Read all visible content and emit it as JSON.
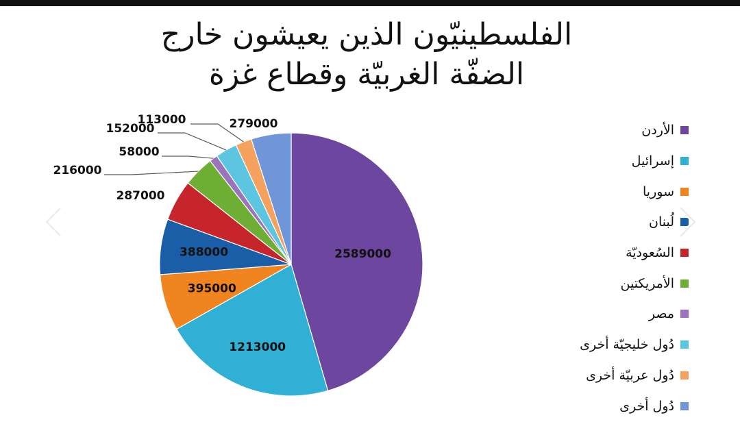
{
  "colors": {
    "background": "#ffffff",
    "title": "#111111",
    "label": "#111111",
    "leader_line": "#5a5a5a"
  },
  "nav": {
    "prev_icon": "chevron-left-icon",
    "next_icon": "chevron-right-icon"
  },
  "chart_data": {
    "type": "pie",
    "title_lines": [
      "الفلسطينيّون الذين يعيشون خارج",
      "الضفّة الغربيّة وقطاع غزة"
    ],
    "legend_position": "right",
    "series": [
      {
        "name": "الأردن",
        "value": 2589000,
        "color": "#6d46a0"
      },
      {
        "name": "إسرائيل",
        "value": 1213000,
        "color": "#2fb0d4"
      },
      {
        "name": "سوريا",
        "value": 395000,
        "color": "#f0841f"
      },
      {
        "name": "لُبنان",
        "value": 388000,
        "color": "#1a5ea8"
      },
      {
        "name": "السُعوديّة",
        "value": 287000,
        "color": "#c6252c"
      },
      {
        "name": "الأمريكتين",
        "value": 216000,
        "color": "#6fae35"
      },
      {
        "name": "مصر",
        "value": 58000,
        "color": "#9b74bd"
      },
      {
        "name": "دُول خليجيّة أخرى",
        "value": 152000,
        "color": "#5cc6e0"
      },
      {
        "name": "دُول عربيّة أخرى",
        "value": 113000,
        "color": "#f5a25f"
      },
      {
        "name": "دُول أخرى",
        "value": 279000,
        "color": "#6f96d8"
      }
    ]
  }
}
